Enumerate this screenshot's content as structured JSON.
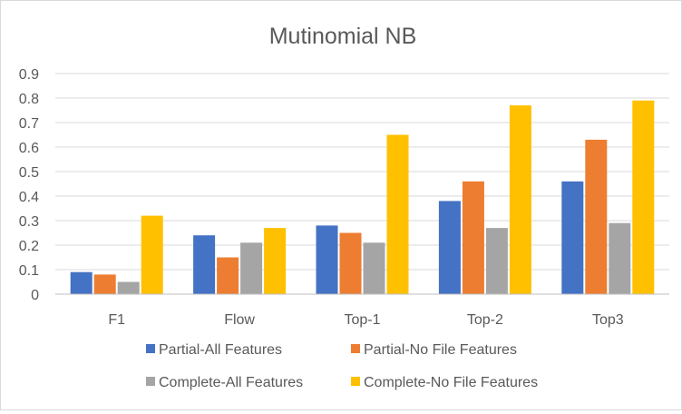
{
  "chart_data": {
    "type": "bar",
    "title": "Mutinomial NB",
    "xlabel": "",
    "ylabel": "",
    "categories": [
      "F1",
      "Flow",
      "Top-1",
      "Top-2",
      "Top3"
    ],
    "ylim": [
      0,
      0.9
    ],
    "yticks": [
      "0",
      "0.1",
      "0.2",
      "0.3",
      "0.4",
      "0.5",
      "0.6",
      "0.7",
      "0.8",
      "0.9"
    ],
    "grid": true,
    "legend_position": "bottom",
    "series": [
      {
        "name": "Partial-All Features",
        "color": "#4472C4",
        "values": [
          0.09,
          0.24,
          0.28,
          0.38,
          0.46
        ]
      },
      {
        "name": "Partial-No File Features",
        "color": "#ED7D31",
        "values": [
          0.08,
          0.15,
          0.25,
          0.46,
          0.63
        ]
      },
      {
        "name": "Complete-All Features",
        "color": "#A5A5A5",
        "values": [
          0.05,
          0.21,
          0.21,
          0.27,
          0.29
        ]
      },
      {
        "name": "Complete-No File Features",
        "color": "#FFC000",
        "values": [
          0.32,
          0.27,
          0.65,
          0.77,
          0.79
        ]
      }
    ]
  }
}
